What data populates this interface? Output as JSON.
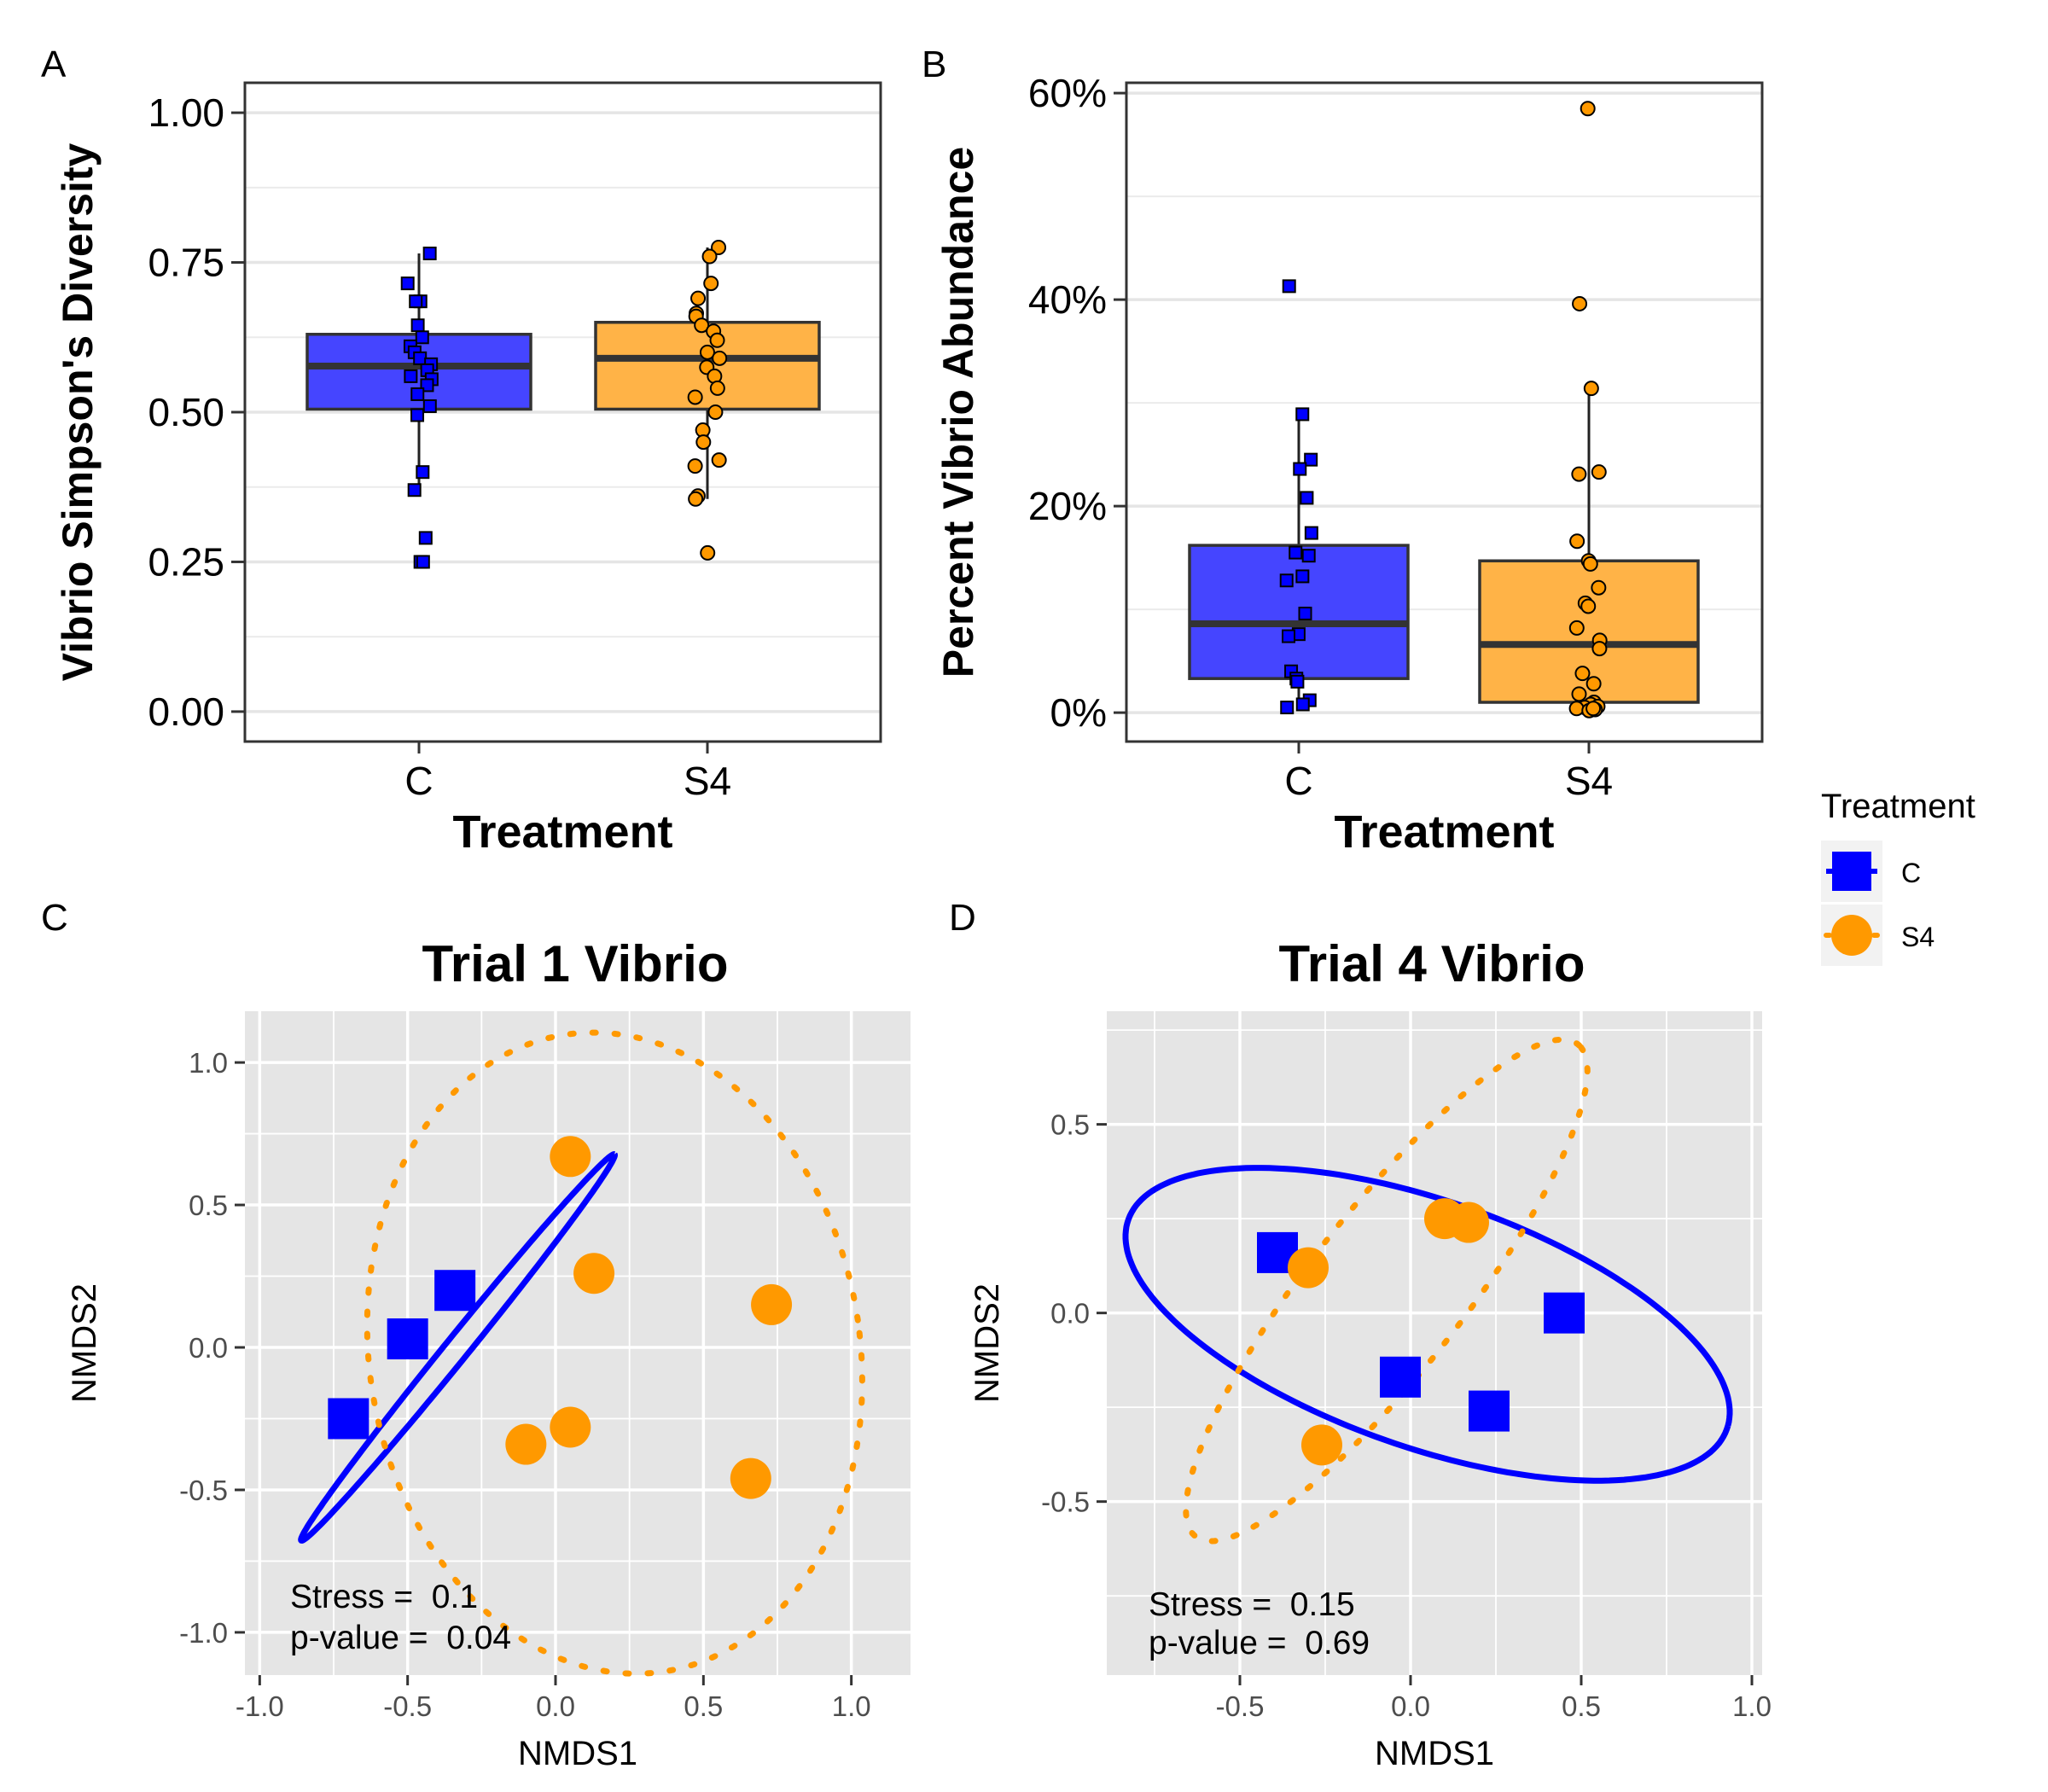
{
  "figure": {
    "legend": {
      "title": "Treatment",
      "items": [
        {
          "label": "C",
          "shape": "square",
          "color": "#0000FF"
        },
        {
          "label": "S4",
          "shape": "circle",
          "color": "#FF9900"
        }
      ]
    }
  },
  "chart_data": [
    {
      "panel": "A",
      "type": "box",
      "title": "",
      "xlabel": "Treatment",
      "ylabel": "Vibrio Simpson's Diversity",
      "categories": [
        "C",
        "S4"
      ],
      "ylim": [
        -0.05,
        1.05
      ],
      "yticks": [
        0.0,
        0.25,
        0.5,
        0.75,
        1.0
      ],
      "ytick_labels": [
        "0.00",
        "0.25",
        "0.50",
        "0.75",
        "1.00"
      ],
      "colors": {
        "C": "#4545FF",
        "S4": "#FFB347"
      },
      "boxes": [
        {
          "category": "C",
          "q1": 0.505,
          "median": 0.577,
          "q3": 0.63,
          "whisker_low": 0.37,
          "whisker_high": 0.765,
          "points": [
            0.765,
            0.715,
            0.685,
            0.685,
            0.645,
            0.625,
            0.61,
            0.6,
            0.59,
            0.58,
            0.57,
            0.56,
            0.555,
            0.545,
            0.53,
            0.51,
            0.495,
            0.4,
            0.37,
            0.29,
            0.25,
            0.25
          ]
        },
        {
          "category": "S4",
          "q1": 0.505,
          "median": 0.59,
          "q3": 0.65,
          "whisker_low": 0.355,
          "whisker_high": 0.775,
          "points": [
            0.775,
            0.76,
            0.715,
            0.69,
            0.665,
            0.66,
            0.645,
            0.635,
            0.62,
            0.6,
            0.59,
            0.575,
            0.56,
            0.54,
            0.525,
            0.5,
            0.47,
            0.45,
            0.42,
            0.41,
            0.36,
            0.355,
            0.265
          ]
        }
      ]
    },
    {
      "panel": "B",
      "type": "box",
      "title": "",
      "xlabel": "Treatment",
      "ylabel": "Percent Vibrio Abundance",
      "categories": [
        "C",
        "S4"
      ],
      "ylim": [
        -2.8,
        61
      ],
      "yticks": [
        0,
        20,
        40,
        60
      ],
      "ytick_labels": [
        "0%",
        "20%",
        "40%",
        "60%"
      ],
      "colors": {
        "C": "#4545FF",
        "S4": "#FFB347"
      },
      "boxes": [
        {
          "category": "C",
          "q1": 3.3,
          "median": 8.6,
          "q3": 16.2,
          "whisker_low": 0.5,
          "whisker_high": 28.9,
          "points": [
            41.3,
            28.9,
            24.5,
            23.6,
            20.8,
            17.4,
            15.5,
            15.2,
            13.2,
            12.8,
            9.6,
            7.6,
            7.4,
            4.0,
            3.3,
            3.0,
            1.2,
            0.8,
            0.5
          ]
        },
        {
          "category": "S4",
          "q1": 1.0,
          "median": 6.6,
          "q3": 14.7,
          "whisker_low": 0.2,
          "whisker_high": 31.4,
          "points": [
            58.5,
            39.6,
            31.4,
            23.3,
            23.1,
            16.6,
            14.7,
            14.4,
            12.1,
            10.6,
            10.3,
            8.2,
            7.0,
            6.2,
            3.8,
            2.8,
            1.8,
            1.0,
            0.8,
            0.6,
            0.5,
            0.4,
            0.3,
            0.2,
            0.4
          ]
        }
      ]
    },
    {
      "panel": "C",
      "type": "scatter",
      "title": "Trial 1 Vibrio",
      "xlabel": "NMDS1",
      "ylabel": "NMDS2",
      "xlim": [
        -1.05,
        1.2
      ],
      "ylim": [
        -1.15,
        1.18
      ],
      "xticks": [
        -1.0,
        -0.5,
        0.0,
        0.5,
        1.0
      ],
      "xtick_labels": [
        "-1.0",
        "-0.5",
        "0.0",
        "0.5",
        "1.0"
      ],
      "yticks": [
        -1.0,
        -0.5,
        0.0,
        0.5,
        1.0
      ],
      "ytick_labels": [
        "-1.0",
        "-0.5",
        "0.0",
        "0.5",
        "1.0"
      ],
      "grid": true,
      "series": [
        {
          "name": "C",
          "shape": "square",
          "color": "#0000FF",
          "points": [
            [
              -0.7,
              -0.25
            ],
            [
              -0.5,
              0.03
            ],
            [
              -0.34,
              0.2
            ]
          ],
          "ellipse": {
            "cx": -0.33,
            "cy": 0.0,
            "rx": 0.86,
            "ry": 0.04,
            "angle_deg": 52,
            "style": "solid"
          }
        },
        {
          "name": "S4",
          "shape": "circle",
          "color": "#FF9900",
          "points": [
            [
              0.05,
              0.67
            ],
            [
              0.13,
              0.26
            ],
            [
              0.73,
              0.15
            ],
            [
              -0.1,
              -0.34
            ],
            [
              0.05,
              -0.28
            ],
            [
              0.66,
              -0.46
            ]
          ],
          "ellipse": {
            "cx": 0.2,
            "cy": -0.02,
            "rx": 0.83,
            "ry": 1.13,
            "angle_deg": 8,
            "style": "dotted"
          }
        }
      ],
      "annotations": [
        "Stress =  0.1",
        "p-value =  0.04"
      ]
    },
    {
      "panel": "D",
      "type": "scatter",
      "title": "Trial 4 Vibrio",
      "xlabel": "NMDS1",
      "ylabel": "NMDS2",
      "xlim": [
        -0.89,
        1.03
      ],
      "ylim": [
        -0.96,
        0.8
      ],
      "xticks": [
        -0.5,
        0.0,
        0.5,
        1.0
      ],
      "xtick_labels": [
        "-0.5",
        "0.0",
        "0.5",
        "1.0"
      ],
      "yticks": [
        -0.5,
        0.0,
        0.5
      ],
      "ytick_labels": [
        "-0.5",
        "0.0",
        "0.5"
      ],
      "grid": true,
      "series": [
        {
          "name": "C",
          "shape": "square",
          "color": "#0000FF",
          "points": [
            [
              -0.39,
              0.16
            ],
            [
              -0.03,
              -0.17
            ],
            [
              0.23,
              -0.26
            ],
            [
              0.45,
              0.0
            ]
          ],
          "ellipse": {
            "cx": 0.05,
            "cy": -0.03,
            "rx": 0.92,
            "ry": 0.33,
            "angle_deg": -17,
            "style": "solid"
          }
        },
        {
          "name": "S4",
          "shape": "circle",
          "color": "#FF9900",
          "points": [
            [
              -0.3,
              0.12
            ],
            [
              0.1,
              0.25
            ],
            [
              0.17,
              0.24
            ],
            [
              -0.26,
              -0.35
            ]
          ],
          "ellipse": {
            "cx": -0.07,
            "cy": 0.06,
            "rx": 0.86,
            "ry": 0.22,
            "angle_deg": 49,
            "style": "dotted"
          }
        }
      ],
      "annotations": [
        "Stress =  0.15",
        "p-value =  0.69"
      ]
    }
  ]
}
